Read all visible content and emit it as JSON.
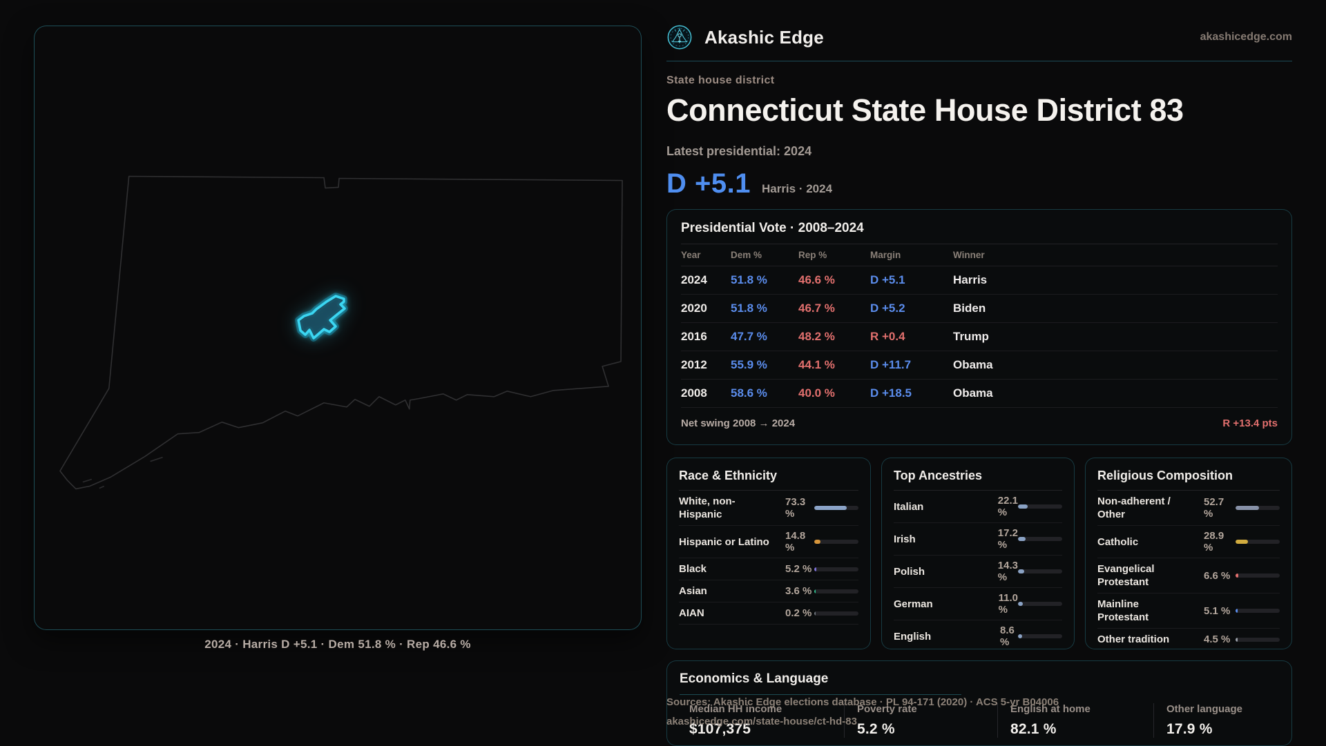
{
  "brand": {
    "name": "Akashic Edge",
    "domain": "akashicedge.com"
  },
  "header": {
    "eyebrow": "State house district",
    "title": "Connecticut State House District 83",
    "subtitle": "Latest presidential: 2024",
    "lead_margin": "D +5.1",
    "lead_context": "Harris · 2024"
  },
  "map": {
    "caption": "2024 · Harris D +5.1 · Dem 51.8 % · Rep 46.6 %",
    "highlight_color": "#3bd6f2",
    "outline_color": "#303032"
  },
  "pres_table": {
    "title": "Presidential Vote · 2008–2024",
    "columns": {
      "year": "Year",
      "dem": "Dem %",
      "rep": "Rep %",
      "margin": "Margin",
      "winner": "Winner"
    },
    "rows": [
      {
        "year": "2024",
        "dem": "51.8 %",
        "rep": "46.6 %",
        "margin": "D +5.1",
        "side": "D",
        "winner": "Harris"
      },
      {
        "year": "2020",
        "dem": "51.8 %",
        "rep": "46.7 %",
        "margin": "D +5.2",
        "side": "D",
        "winner": "Biden"
      },
      {
        "year": "2016",
        "dem": "47.7 %",
        "rep": "48.2 %",
        "margin": "R +0.4",
        "side": "R",
        "winner": "Trump"
      },
      {
        "year": "2012",
        "dem": "55.9 %",
        "rep": "44.1 %",
        "margin": "D +11.7",
        "side": "D",
        "winner": "Obama"
      },
      {
        "year": "2008",
        "dem": "58.6 %",
        "rep": "40.0 %",
        "margin": "D +18.5",
        "side": "D",
        "winner": "Obama"
      }
    ],
    "net_swing_label": "Net swing 2008 → 2024",
    "net_swing_value": "R +13.4 pts"
  },
  "race": {
    "title": "Race & Ethnicity",
    "rows": [
      {
        "label": "White, non-\nHispanic",
        "value": "73.3 %",
        "bar": {
          "pct": 73.3,
          "color": "#8ba3c7"
        }
      },
      {
        "label": "Hispanic or Latino",
        "value": "14.8 %",
        "bar": {
          "pct": 14.8,
          "color": "#d7963b"
        }
      },
      {
        "label": "Black",
        "value": "5.2 %",
        "bar": {
          "pct": 5.2,
          "color": "#7d72d9"
        }
      },
      {
        "label": "Asian",
        "value": "3.6 %",
        "bar": {
          "pct": 3.6,
          "color": "#2fbf8f"
        }
      },
      {
        "label": "AIAN",
        "value": "0.2 %",
        "bar": {
          "pct": 0.2,
          "color": "#6f757d"
        }
      }
    ]
  },
  "ancestries": {
    "title": "Top Ancestries",
    "rows": [
      {
        "label": "Italian",
        "value": "22.1 %",
        "bar": {
          "pct": 22.1,
          "color": "#8aa2c4"
        }
      },
      {
        "label": "Irish",
        "value": "17.2 %",
        "bar": {
          "pct": 17.2,
          "color": "#8aa2c4"
        }
      },
      {
        "label": "Polish",
        "value": "14.3 %",
        "bar": {
          "pct": 14.3,
          "color": "#8aa2c4"
        }
      },
      {
        "label": "German",
        "value": "11.0 %",
        "bar": {
          "pct": 11.0,
          "color": "#8aa2c4"
        }
      },
      {
        "label": "English",
        "value": "8.6 %",
        "bar": {
          "pct": 8.6,
          "color": "#8aa2c4"
        }
      }
    ]
  },
  "religion": {
    "title": "Religious Composition",
    "rows": [
      {
        "label": "Non-adherent /\nOther",
        "value": "52.7 %",
        "bar": {
          "pct": 52.7,
          "color": "#8791a7"
        }
      },
      {
        "label": "Catholic",
        "value": "28.9 %",
        "bar": {
          "pct": 28.9,
          "color": "#d2ac3f"
        }
      },
      {
        "label": "Evangelical\nProtestant",
        "value": "6.6 %",
        "bar": {
          "pct": 6.6,
          "color": "#e2706e"
        }
      },
      {
        "label": "Mainline\nProtestant",
        "value": "5.1 %",
        "bar": {
          "pct": 5.1,
          "color": "#5b8ded"
        }
      },
      {
        "label": "Other tradition",
        "value": "4.5 %",
        "bar": {
          "pct": 4.5,
          "color": "#9aa0a8"
        }
      }
    ]
  },
  "economics": {
    "title": "Economics & Language",
    "stats": [
      {
        "label": "Median HH income",
        "value": "$107,375"
      },
      {
        "label": "Poverty rate",
        "value": "5.2 %"
      },
      {
        "label": "English at home",
        "value": "82.1 %"
      },
      {
        "label": "Other language",
        "value": "17.9 %"
      }
    ]
  },
  "footer": {
    "line1": "Sources: Akashic Edge elections database · PL 94-171 (2020) · ACS 5-yr B04006",
    "line2": "akashicedge.com/state-house/ct-hd-83"
  },
  "colors": {
    "dem": "#5b8ded",
    "rep": "#e2706e",
    "accent": "#3bd6f2"
  }
}
